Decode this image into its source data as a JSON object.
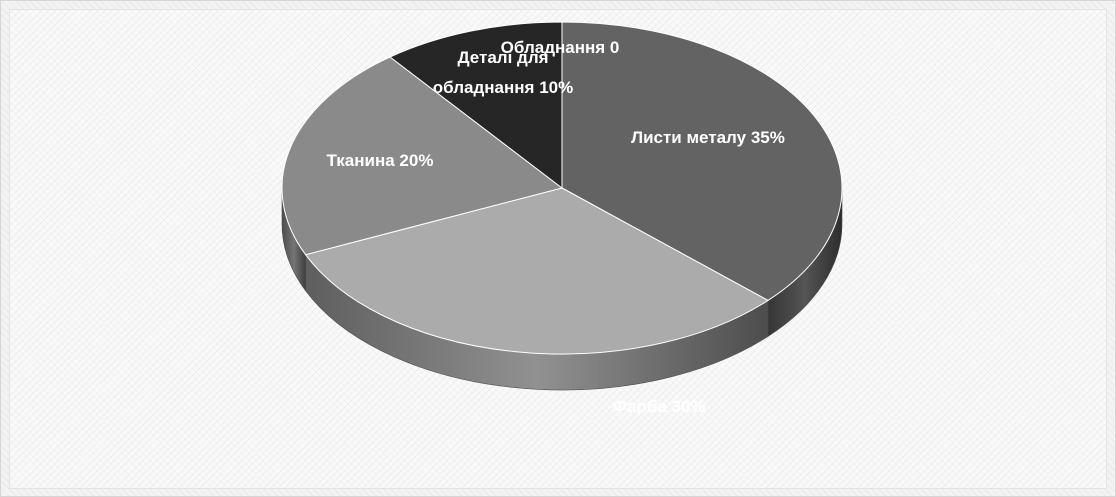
{
  "chart_data": {
    "type": "pie",
    "title": "",
    "style": "3d",
    "slices": [
      {
        "name": "Листи металу",
        "value": 35,
        "label_lines": [
          "Листи металу 35%"
        ],
        "color": "#636363"
      },
      {
        "name": "Фарба",
        "value": 30,
        "label_lines": [
          "Фарба 30%"
        ],
        "color": "#ababab"
      },
      {
        "name": "Тканина",
        "value": 20,
        "label_lines": [
          "Тканина 20%"
        ],
        "color": "#8a8a8a"
      },
      {
        "name": "Деталі для обладнання",
        "value": 10,
        "label_lines": [
          "Деталі для",
          "обладнання 10%"
        ],
        "color": "#262626"
      },
      {
        "name": "Обладнання",
        "value": 0,
        "label_lines": [
          "Обладнання 0"
        ],
        "color": "#3a3a3a"
      }
    ]
  }
}
